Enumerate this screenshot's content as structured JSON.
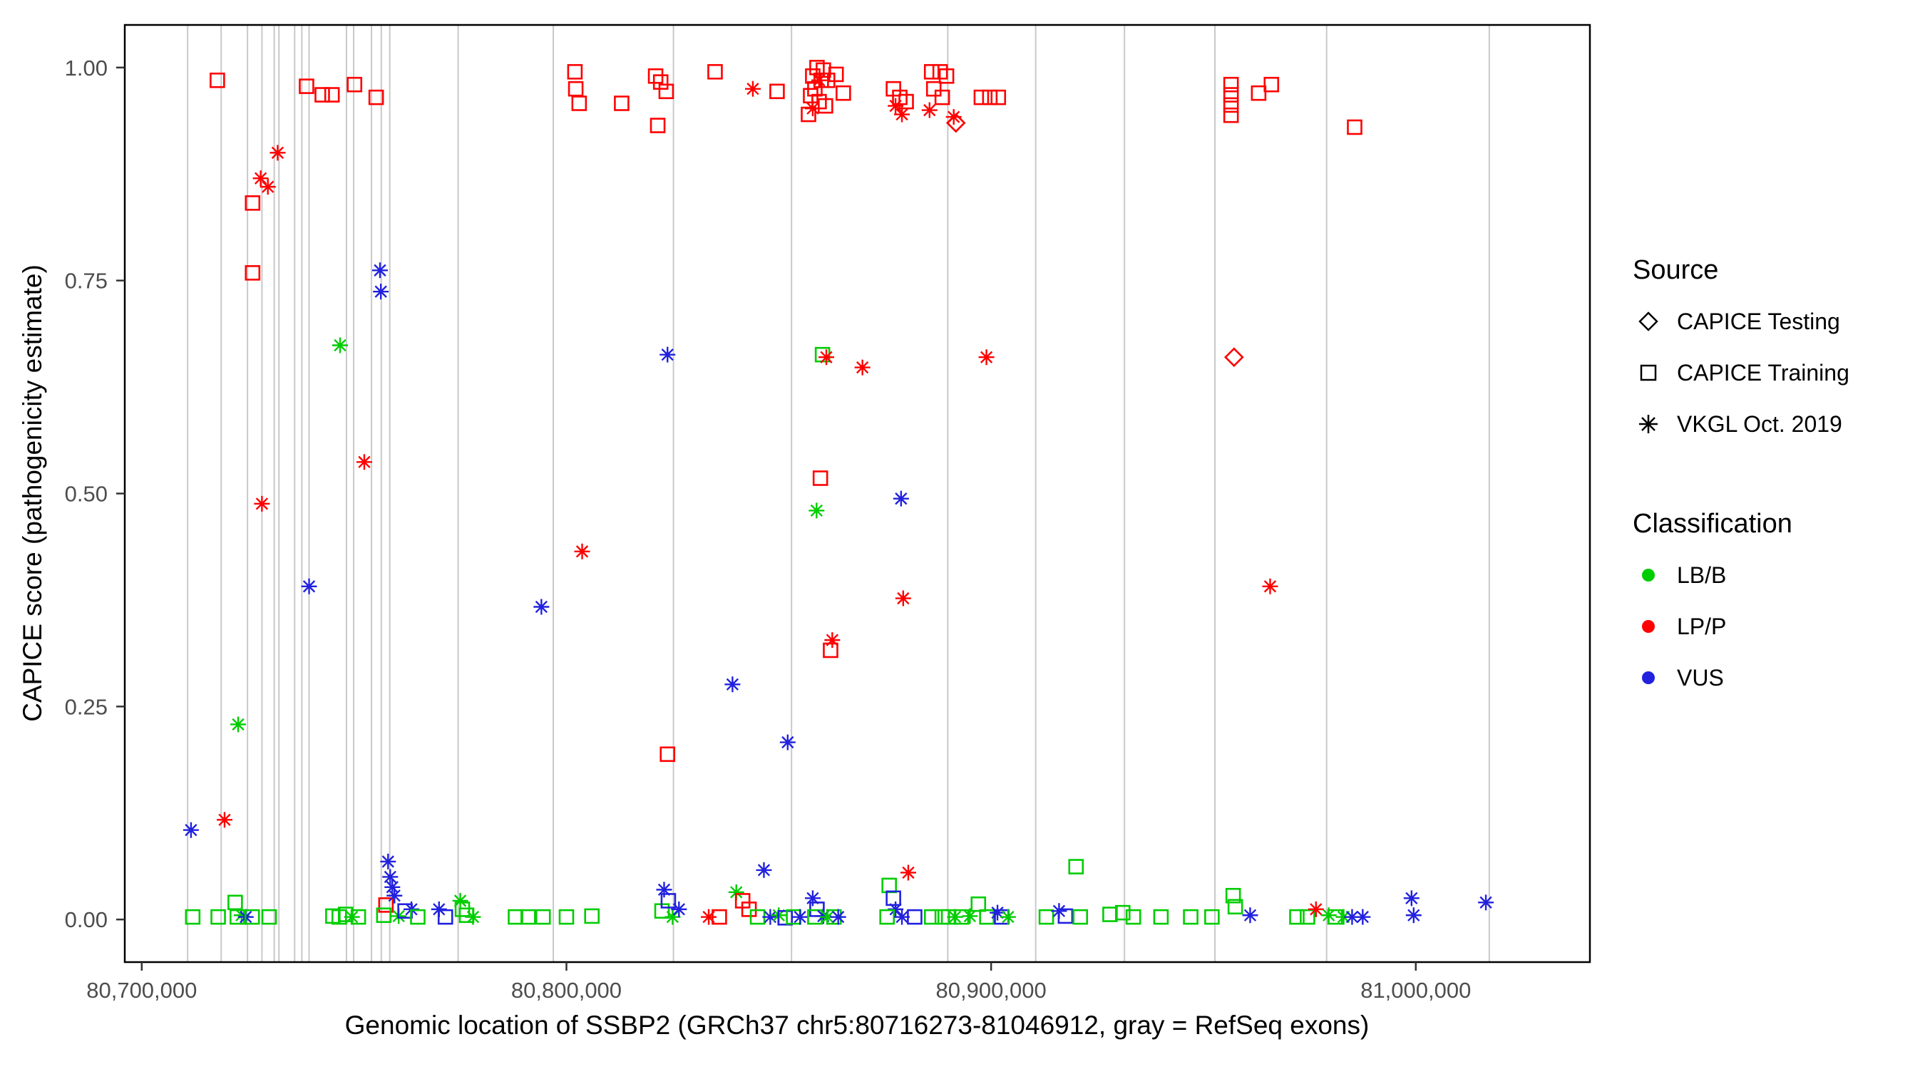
{
  "chart_data": {
    "type": "scatter",
    "title": "",
    "xlabel": "Genomic location of SSBP2 (GRCh37 chr5:80716273-81046912, gray = RefSeq exons)",
    "ylabel": "CAPICE score (pathogenicity estimate)",
    "x_domain": [
      80696000,
      81041000
    ],
    "y_domain": [
      -0.05,
      1.05
    ],
    "grid": "off",
    "legend_position": "right",
    "x_ticks": [
      {
        "value": 80700000,
        "label": "80,700,000"
      },
      {
        "value": 80800000,
        "label": "80,800,000"
      },
      {
        "value": 80900000,
        "label": "80,900,000"
      },
      {
        "value": 81000000,
        "label": "81,000,000"
      }
    ],
    "y_ticks": [
      {
        "value": 0.0,
        "label": "0.00"
      },
      {
        "value": 0.25,
        "label": "0.25"
      },
      {
        "value": 0.5,
        "label": "0.50"
      },
      {
        "value": 0.75,
        "label": "0.75"
      },
      {
        "value": 1.0,
        "label": "1.00"
      }
    ],
    "exon_color": "#c9c9c9",
    "exon_positions": [
      80710800,
      80718700,
      80724900,
      80728300,
      80731200,
      80732300,
      80736000,
      80737700,
      80739400,
      80748200,
      80749900,
      80754100,
      80756400,
      80758400,
      80774500,
      80796900,
      80825200,
      80853000,
      80889800,
      80910500,
      80931400,
      80952700,
      80979000,
      81017300
    ],
    "colors": {
      "B": "#00CD00",
      "P": "#FF0000",
      "V": "#2121DE"
    },
    "shape_legend": {
      "s": "CAPICE Training",
      "a": "VKGL Oct. 2019",
      "d": "CAPICE Testing"
    },
    "class_legend": {
      "B": "LB/B",
      "P": "LP/P",
      "V": "VUS"
    },
    "points": [
      [
        80717800,
        0.985,
        "s",
        "P"
      ],
      [
        80738800,
        0.978,
        "s",
        "P"
      ],
      [
        80742500,
        0.968,
        "s",
        "P"
      ],
      [
        80744800,
        0.968,
        "s",
        "P"
      ],
      [
        80750100,
        0.98,
        "s",
        "P"
      ],
      [
        80755200,
        0.965,
        "s",
        "P"
      ],
      [
        80732000,
        0.9,
        "a",
        "P"
      ],
      [
        80728000,
        0.87,
        "a",
        "P"
      ],
      [
        80729700,
        0.86,
        "a",
        "P"
      ],
      [
        80726100,
        0.841,
        "s",
        "P"
      ],
      [
        80726100,
        0.759,
        "s",
        "P"
      ],
      [
        80802000,
        0.995,
        "s",
        "P"
      ],
      [
        80802200,
        0.975,
        "s",
        "P"
      ],
      [
        80803000,
        0.958,
        "s",
        "P"
      ],
      [
        80813000,
        0.958,
        "s",
        "P"
      ],
      [
        80821000,
        0.99,
        "s",
        "P"
      ],
      [
        80822200,
        0.983,
        "s",
        "P"
      ],
      [
        80823500,
        0.972,
        "s",
        "P"
      ],
      [
        80821500,
        0.932,
        "s",
        "P"
      ],
      [
        80835000,
        0.995,
        "s",
        "P"
      ],
      [
        80843900,
        0.975,
        "a",
        "P"
      ],
      [
        80849600,
        0.972,
        "s",
        "P"
      ],
      [
        80859000,
        1.0,
        "s",
        "P"
      ],
      [
        80860500,
        0.997,
        "s",
        "P"
      ],
      [
        80858000,
        0.99,
        "s",
        "P"
      ],
      [
        80860000,
        0.985,
        "s",
        "P"
      ],
      [
        80861500,
        0.985,
        "s",
        "P"
      ],
      [
        80859500,
        0.985,
        "a",
        "P"
      ],
      [
        80858500,
        0.975,
        "s",
        "P"
      ],
      [
        80857500,
        0.967,
        "s",
        "P"
      ],
      [
        80859500,
        0.96,
        "s",
        "P"
      ],
      [
        80861000,
        0.955,
        "s",
        "P"
      ],
      [
        80858000,
        0.952,
        "a",
        "P"
      ],
      [
        80857000,
        0.945,
        "s",
        "P"
      ],
      [
        80863500,
        0.992,
        "s",
        "P"
      ],
      [
        80865200,
        0.97,
        "s",
        "P"
      ],
      [
        80877000,
        0.975,
        "s",
        "P"
      ],
      [
        80878500,
        0.965,
        "s",
        "P"
      ],
      [
        80880000,
        0.96,
        "s",
        "P"
      ],
      [
        80877500,
        0.955,
        "a",
        "P"
      ],
      [
        80879000,
        0.945,
        "a",
        "P"
      ],
      [
        80886000,
        0.995,
        "s",
        "P"
      ],
      [
        80888000,
        0.995,
        "s",
        "P"
      ],
      [
        80889500,
        0.99,
        "s",
        "P"
      ],
      [
        80886500,
        0.975,
        "s",
        "P"
      ],
      [
        80888500,
        0.965,
        "s",
        "P"
      ],
      [
        80891700,
        0.935,
        "d",
        "P"
      ],
      [
        80891200,
        0.942,
        "a",
        "P"
      ],
      [
        80885500,
        0.95,
        "a",
        "P"
      ],
      [
        80897700,
        0.965,
        "s",
        "P"
      ],
      [
        80899700,
        0.965,
        "s",
        "P"
      ],
      [
        80901700,
        0.965,
        "s",
        "P"
      ],
      [
        80956500,
        0.98,
        "s",
        "P"
      ],
      [
        80956500,
        0.968,
        "s",
        "P"
      ],
      [
        80956500,
        0.956,
        "s",
        "P"
      ],
      [
        80956500,
        0.944,
        "s",
        "P"
      ],
      [
        80963000,
        0.97,
        "s",
        "P"
      ],
      [
        80966000,
        0.98,
        "s",
        "P"
      ],
      [
        80985600,
        0.93,
        "s",
        "P"
      ],
      [
        80746700,
        0.674,
        "a",
        "B"
      ],
      [
        80756100,
        0.762,
        "a",
        "V"
      ],
      [
        80756300,
        0.737,
        "a",
        "V"
      ],
      [
        80752400,
        0.537,
        "a",
        "P"
      ],
      [
        80728300,
        0.488,
        "a",
        "P"
      ],
      [
        80739400,
        0.391,
        "a",
        "V"
      ],
      [
        80722700,
        0.229,
        "a",
        "B"
      ],
      [
        80719500,
        0.117,
        "a",
        "P"
      ],
      [
        80711600,
        0.105,
        "a",
        "V"
      ],
      [
        80794100,
        0.367,
        "a",
        "V"
      ],
      [
        80803700,
        0.432,
        "a",
        "P"
      ],
      [
        80823800,
        0.663,
        "a",
        "V"
      ],
      [
        80823800,
        0.194,
        "s",
        "P"
      ],
      [
        80839100,
        0.276,
        "a",
        "V"
      ],
      [
        80852100,
        0.208,
        "a",
        "V"
      ],
      [
        80860300,
        0.663,
        "s",
        "B"
      ],
      [
        80861200,
        0.66,
        "a",
        "P"
      ],
      [
        80869700,
        0.648,
        "a",
        "P"
      ],
      [
        80859800,
        0.518,
        "s",
        "P"
      ],
      [
        80858900,
        0.48,
        "a",
        "B"
      ],
      [
        80878800,
        0.494,
        "a",
        "V"
      ],
      [
        80879300,
        0.377,
        "a",
        "P"
      ],
      [
        80862600,
        0.328,
        "a",
        "P"
      ],
      [
        80862200,
        0.316,
        "s",
        "P"
      ],
      [
        80898900,
        0.66,
        "a",
        "P"
      ],
      [
        80957200,
        0.66,
        "d",
        "P"
      ],
      [
        80965700,
        0.391,
        "a",
        "P"
      ],
      [
        80712000,
        0.003,
        "s",
        "B"
      ],
      [
        80718000,
        0.003,
        "s",
        "B"
      ],
      [
        80722000,
        0.02,
        "s",
        "B"
      ],
      [
        80722500,
        0.003,
        "s",
        "B"
      ],
      [
        80723500,
        0.005,
        "a",
        "B"
      ],
      [
        80724500,
        0.003,
        "a",
        "V"
      ],
      [
        80726000,
        0.003,
        "s",
        "B"
      ],
      [
        80730000,
        0.003,
        "s",
        "B"
      ],
      [
        80745000,
        0.004,
        "s",
        "B"
      ],
      [
        80746500,
        0.003,
        "s",
        "B"
      ],
      [
        80748000,
        0.006,
        "s",
        "B"
      ],
      [
        80749500,
        0.003,
        "a",
        "B"
      ],
      [
        80751000,
        0.003,
        "s",
        "B"
      ],
      [
        80757500,
        0.017,
        "s",
        "P"
      ],
      [
        80758000,
        0.068,
        "a",
        "V"
      ],
      [
        80758500,
        0.05,
        "a",
        "V"
      ],
      [
        80759000,
        0.038,
        "a",
        "V"
      ],
      [
        80759500,
        0.028,
        "a",
        "V"
      ],
      [
        80757000,
        0.005,
        "s",
        "B"
      ],
      [
        80760500,
        0.004,
        "a",
        "B"
      ],
      [
        80762000,
        0.01,
        "s",
        "V"
      ],
      [
        80763500,
        0.012,
        "a",
        "V"
      ],
      [
        80765000,
        0.003,
        "s",
        "B"
      ],
      [
        80770000,
        0.012,
        "a",
        "V"
      ],
      [
        80771500,
        0.003,
        "s",
        "V"
      ],
      [
        80775000,
        0.022,
        "a",
        "B"
      ],
      [
        80775500,
        0.012,
        "s",
        "B"
      ],
      [
        80776500,
        0.005,
        "s",
        "B"
      ],
      [
        80778000,
        0.003,
        "a",
        "B"
      ],
      [
        80788000,
        0.003,
        "s",
        "B"
      ],
      [
        80791000,
        0.003,
        "s",
        "B"
      ],
      [
        80794500,
        0.003,
        "s",
        "B"
      ],
      [
        80800000,
        0.003,
        "s",
        "B"
      ],
      [
        80806000,
        0.004,
        "s",
        "B"
      ],
      [
        80822500,
        0.01,
        "s",
        "B"
      ],
      [
        80823000,
        0.035,
        "a",
        "V"
      ],
      [
        80824000,
        0.022,
        "s",
        "V"
      ],
      [
        80825000,
        0.003,
        "a",
        "B"
      ],
      [
        80826500,
        0.012,
        "a",
        "V"
      ],
      [
        80833500,
        0.003,
        "a",
        "P"
      ],
      [
        80836000,
        0.003,
        "s",
        "P"
      ],
      [
        80840000,
        0.032,
        "a",
        "B"
      ],
      [
        80841500,
        0.022,
        "s",
        "P"
      ],
      [
        80843000,
        0.012,
        "s",
        "P"
      ],
      [
        80846500,
        0.058,
        "a",
        "V"
      ],
      [
        80845000,
        0.003,
        "s",
        "B"
      ],
      [
        80848000,
        0.003,
        "a",
        "V"
      ],
      [
        80850000,
        0.005,
        "a",
        "B"
      ],
      [
        80851500,
        0.002,
        "s",
        "V"
      ],
      [
        80853500,
        0.003,
        "s",
        "B"
      ],
      [
        80855000,
        0.003,
        "a",
        "V"
      ],
      [
        80858000,
        0.025,
        "a",
        "V"
      ],
      [
        80859000,
        0.012,
        "s",
        "V"
      ],
      [
        80858500,
        0.003,
        "s",
        "B"
      ],
      [
        80860500,
        0.004,
        "a",
        "V"
      ],
      [
        80861500,
        0.003,
        "a",
        "B"
      ],
      [
        80863000,
        0.003,
        "s",
        "B"
      ],
      [
        80864000,
        0.003,
        "a",
        "V"
      ],
      [
        80876000,
        0.04,
        "s",
        "B"
      ],
      [
        80877000,
        0.025,
        "s",
        "V"
      ],
      [
        80877500,
        0.012,
        "a",
        "V"
      ],
      [
        80875500,
        0.003,
        "s",
        "B"
      ],
      [
        80879000,
        0.003,
        "a",
        "V"
      ],
      [
        80880500,
        0.055,
        "a",
        "P"
      ],
      [
        80882000,
        0.003,
        "s",
        "V"
      ],
      [
        80886000,
        0.003,
        "s",
        "B"
      ],
      [
        80888500,
        0.003,
        "s",
        "B"
      ],
      [
        80890000,
        0.003,
        "s",
        "B"
      ],
      [
        80891500,
        0.003,
        "a",
        "B"
      ],
      [
        80893000,
        0.003,
        "s",
        "B"
      ],
      [
        80895000,
        0.004,
        "a",
        "B"
      ],
      [
        80897000,
        0.018,
        "s",
        "B"
      ],
      [
        80899000,
        0.003,
        "s",
        "B"
      ],
      [
        80901500,
        0.008,
        "a",
        "V"
      ],
      [
        80902500,
        0.003,
        "s",
        "V"
      ],
      [
        80904000,
        0.003,
        "a",
        "B"
      ],
      [
        80913000,
        0.003,
        "s",
        "B"
      ],
      [
        80916000,
        0.01,
        "a",
        "V"
      ],
      [
        80917500,
        0.004,
        "s",
        "V"
      ],
      [
        80920000,
        0.062,
        "s",
        "B"
      ],
      [
        80921000,
        0.003,
        "s",
        "B"
      ],
      [
        80928000,
        0.006,
        "s",
        "B"
      ],
      [
        80931000,
        0.008,
        "s",
        "B"
      ],
      [
        80933500,
        0.003,
        "s",
        "B"
      ],
      [
        80940000,
        0.003,
        "s",
        "B"
      ],
      [
        80947000,
        0.003,
        "s",
        "B"
      ],
      [
        80952000,
        0.003,
        "s",
        "B"
      ],
      [
        80957000,
        0.028,
        "s",
        "B"
      ],
      [
        80957500,
        0.015,
        "s",
        "B"
      ],
      [
        80961000,
        0.005,
        "a",
        "V"
      ],
      [
        80972000,
        0.003,
        "s",
        "B"
      ],
      [
        80974500,
        0.003,
        "s",
        "B"
      ],
      [
        80976500,
        0.012,
        "a",
        "P"
      ],
      [
        80979500,
        0.005,
        "a",
        "B"
      ],
      [
        80981000,
        0.003,
        "s",
        "B"
      ],
      [
        80983000,
        0.003,
        "a",
        "B"
      ],
      [
        80985000,
        0.003,
        "a",
        "V"
      ],
      [
        80987500,
        0.003,
        "a",
        "V"
      ],
      [
        80999000,
        0.025,
        "a",
        "V"
      ],
      [
        80999500,
        0.005,
        "a",
        "V"
      ],
      [
        81016500,
        0.02,
        "a",
        "V"
      ]
    ]
  },
  "legend": {
    "source": {
      "title": "Source",
      "items": [
        {
          "shape": "diamond",
          "label": "CAPICE Testing"
        },
        {
          "shape": "square",
          "label": "CAPICE Training"
        },
        {
          "shape": "asterisk",
          "label": "VKGL Oct. 2019"
        }
      ]
    },
    "classification": {
      "title": "Classification",
      "items": [
        {
          "label": "LB/B",
          "color": "#00CD00"
        },
        {
          "label": "LP/P",
          "color": "#FF0000"
        },
        {
          "label": "VUS",
          "color": "#2121DE"
        }
      ]
    }
  }
}
